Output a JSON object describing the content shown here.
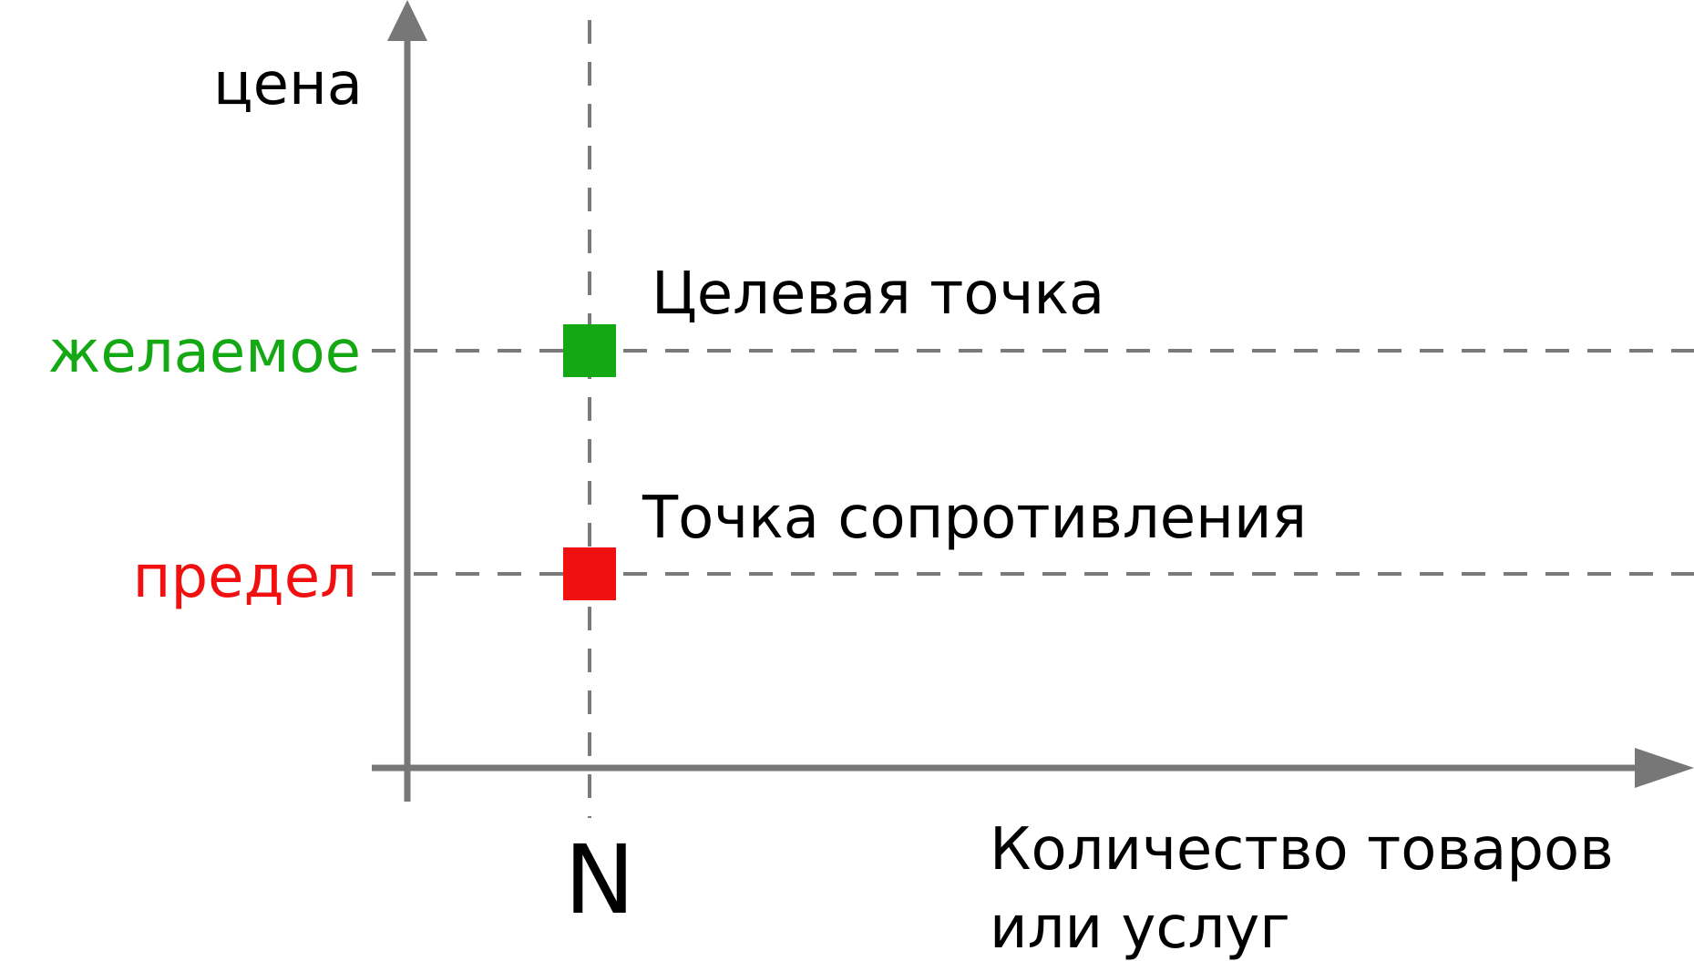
{
  "axes": {
    "y_label": "цена",
    "x_label_line1": "Количество товаров",
    "x_label_line2": "или услуг",
    "x_tick": "N",
    "color": "#777777"
  },
  "levels": {
    "desired": {
      "label": "желаемое",
      "color": "#15a815"
    },
    "limit": {
      "label": "предел",
      "color": "#f01010"
    }
  },
  "points": {
    "target": {
      "label": "Целевая точка",
      "color": "#15a815"
    },
    "resistance": {
      "label": "Точка сопротивления",
      "color": "#f01010"
    }
  }
}
